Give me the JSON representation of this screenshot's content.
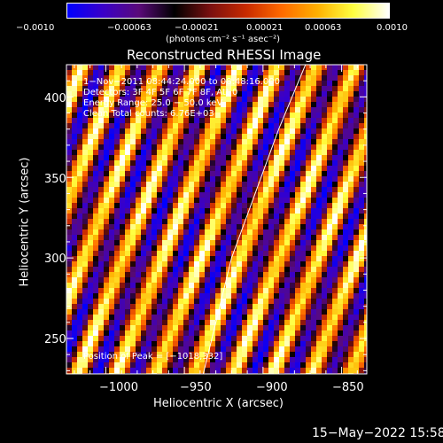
{
  "colorbar": {
    "ticks": [
      "−0.0010",
      "−0.00063",
      "−0.00021",
      "0.00021",
      "0.00063",
      "0.0010"
    ],
    "unit_label": "(photons cm⁻² s⁻¹ asec⁻²)",
    "colors": [
      "#0000ff",
      "#3a00c8",
      "#5a0a7a",
      "#000000",
      "#7a1010",
      "#c82a00",
      "#ff6a00",
      "#ffb000",
      "#ffff40",
      "#ffffff"
    ]
  },
  "chart_data": {
    "type": "heatmap",
    "title": "Reconstructed RHESSI Image",
    "xlabel": "Heliocentric X (arcsec)",
    "ylabel": "Heliocentric Y (arcsec)",
    "xlim": [
      -1025,
      -834
    ],
    "ylim": [
      228,
      420
    ],
    "x_ticks": [
      -1000,
      -950,
      -900,
      -850
    ],
    "y_ticks": [
      250,
      300,
      350,
      400
    ],
    "x_tick_labels": [
      "−1000",
      "−950",
      "−900",
      "−850"
    ],
    "y_tick_labels": [
      "250",
      "300",
      "350",
      "400"
    ],
    "annotations": [
      "1−Nov−2011 08:44:24.000 to 08:48:16.000",
      "Detectors: 3F 4F 5F 6F 7F 8F, Att 0",
      "Energy Range: 25.0 − 50.0 keV",
      "Clean     Total counts: 6.76E+03"
    ],
    "peak_label": "Position of Peak = [−1018,332]",
    "peak": [
      -1018,
      332
    ],
    "limb_curve": [
      [
        -938,
        228
      ],
      [
        -930,
        260
      ],
      [
        -920,
        300
      ],
      [
        -905,
        340
      ],
      [
        -890,
        380
      ],
      [
        -873,
        420
      ]
    ],
    "stripe_pattern": {
      "angle_deg": 68,
      "period_arcsec": 23
    }
  },
  "footer": {
    "timestamp": "15−May−2022 15:58"
  }
}
